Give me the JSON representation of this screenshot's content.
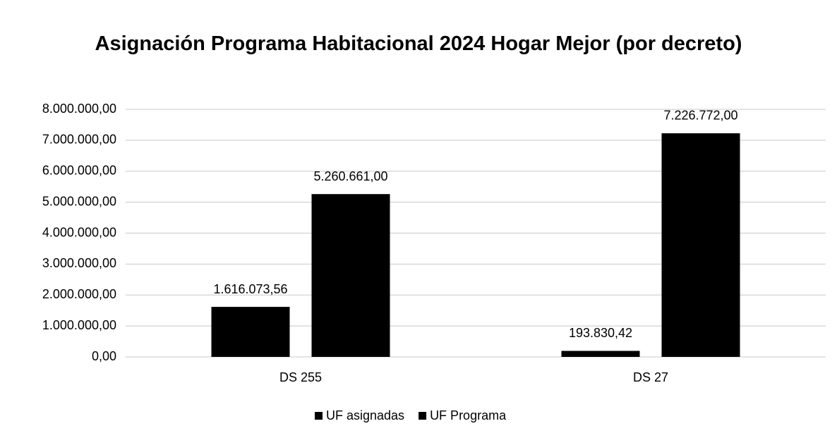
{
  "chart_data": {
    "type": "bar",
    "title": "Asignación Programa Habitacional 2024 Hogar Mejor (por decreto)",
    "categories": [
      "DS 255",
      "DS 27"
    ],
    "series": [
      {
        "name": "UF asignadas",
        "color": "#000000",
        "values": [
          1616073.56,
          193830.42
        ],
        "value_labels": [
          "1.616.073,56",
          "193.830,42"
        ]
      },
      {
        "name": "UF Programa",
        "color": "#000000",
        "values": [
          5260661,
          7226772
        ],
        "value_labels": [
          "5.260.661,00",
          "7.226.772,00"
        ]
      }
    ],
    "ylim": [
      0,
      8000000
    ],
    "yticks": [
      {
        "value": 0,
        "label": "0,00"
      },
      {
        "value": 1000000,
        "label": "1.000.000,00"
      },
      {
        "value": 2000000,
        "label": "2.000.000,00"
      },
      {
        "value": 3000000,
        "label": "3.000.000,00"
      },
      {
        "value": 4000000,
        "label": "4.000.000,00"
      },
      {
        "value": 5000000,
        "label": "5.000.000,00"
      },
      {
        "value": 6000000,
        "label": "6.000.000,00"
      },
      {
        "value": 7000000,
        "label": "7.000.000,00"
      },
      {
        "value": 8000000,
        "label": "8.000.000,00"
      }
    ],
    "grid": true,
    "legend": "bottom"
  }
}
